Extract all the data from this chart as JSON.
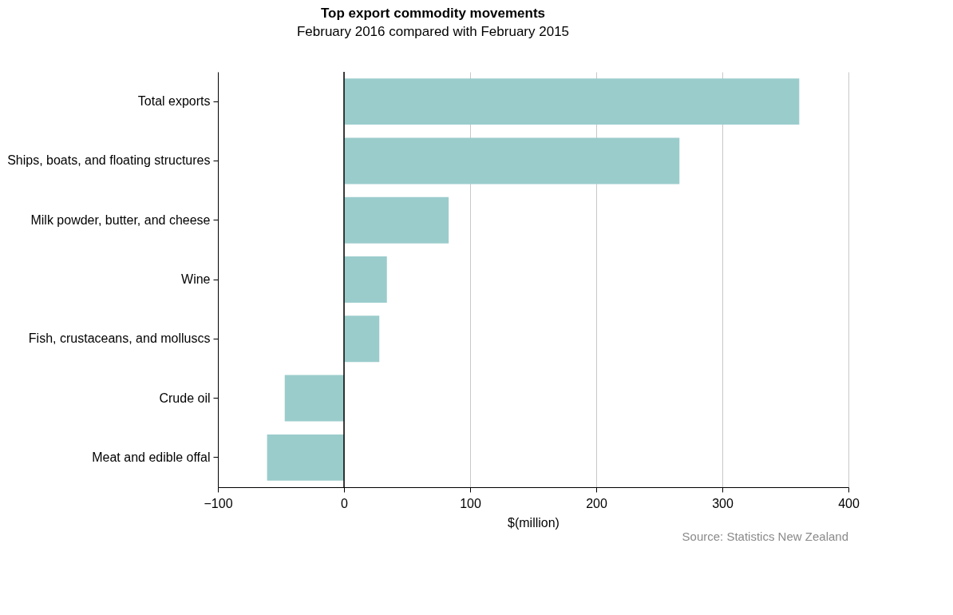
{
  "chart_data": {
    "type": "bar",
    "orientation": "horizontal",
    "title": "Top export commodity movements",
    "subtitle": "February 2016 compared with February 2015",
    "categories": [
      "Total exports",
      "Ships, boats, and floating structures",
      "Milk powder, butter, and cheese",
      "Wine",
      "Fish, crustaceans, and molluscs",
      "Crude oil",
      "Meat and edible offal"
    ],
    "values": [
      361,
      266,
      83,
      34,
      28,
      -47,
      -61
    ],
    "color": "#9bcccc",
    "xlabel": "$(million)",
    "xlim": [
      -100,
      400
    ],
    "xticks": [
      -100,
      0,
      100,
      200,
      300,
      400
    ],
    "grid": "x",
    "ref_lines": [
      {
        "axis": "x",
        "value": 0,
        "color": "#000000"
      }
    ],
    "annotations": [
      "Source: Statistics New Zealand"
    ]
  }
}
